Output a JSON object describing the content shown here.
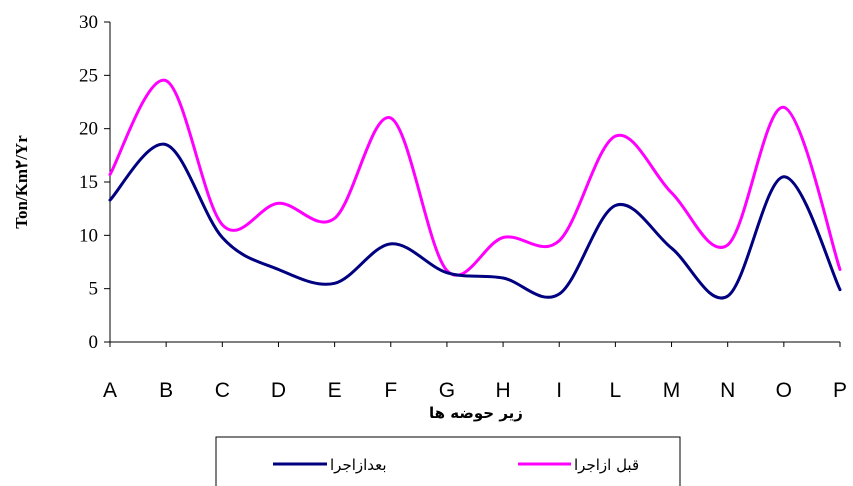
{
  "chart_data": {
    "type": "line",
    "categories": [
      "A",
      "B",
      "C",
      "D",
      "E",
      "F",
      "G",
      "H",
      "I",
      "L",
      "M",
      "N",
      "O",
      "P"
    ],
    "series": [
      {
        "name": "بعدازاجرا",
        "color": "#000080",
        "values": [
          13.3,
          18.5,
          9.8,
          6.8,
          5.5,
          9.2,
          6.5,
          6.0,
          4.5,
          12.8,
          8.8,
          4.3,
          15.5,
          4.9
        ]
      },
      {
        "name": "قبل ازاجرا",
        "color": "#FF00FF",
        "values": [
          15.7,
          24.5,
          11.0,
          13.0,
          11.6,
          21.0,
          6.7,
          9.8,
          9.5,
          19.3,
          14.0,
          9.1,
          22.0,
          6.8
        ]
      }
    ],
    "ylim": [
      0,
      30
    ],
    "yticks": [
      0,
      5,
      10,
      15,
      20,
      25,
      30
    ],
    "xlabel": "زیر حوضه ها",
    "ylabel": "Ton/Km۲/Yr",
    "grid": false,
    "legend_position": "bottom"
  }
}
